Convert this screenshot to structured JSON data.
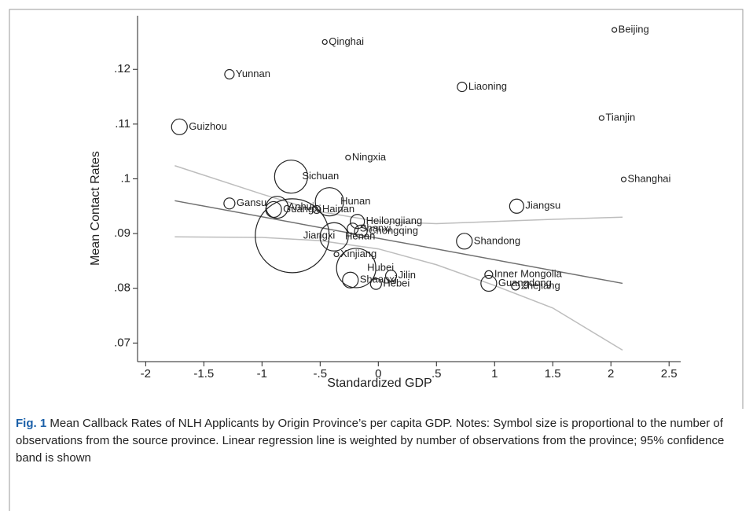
{
  "chart_data": {
    "type": "scatter",
    "xlabel": "Standardized GDP",
    "ylabel": "Mean Contact Rates",
    "xlim": [
      -2.07,
      2.6
    ],
    "ylim": [
      0.0666,
      0.1298
    ],
    "xticks": [
      -2,
      -1.5,
      -1,
      {
        "value": -0.5,
        "label": "-.5"
      },
      0,
      {
        "value": 0.5,
        "label": ".5"
      },
      1,
      1.5,
      2,
      2.5
    ],
    "yticks": [
      {
        "value": 0.07,
        "label": ".07"
      },
      {
        "value": 0.08,
        "label": ".08"
      },
      {
        "value": 0.09,
        "label": ".09"
      },
      {
        "value": 0.1,
        "label": ".1"
      },
      {
        "value": 0.11,
        "label": ".11"
      },
      {
        "value": 0.12,
        "label": ".12"
      }
    ],
    "points": {
      "labels": [
        "Beijing",
        "Qinghai",
        "Yunnan",
        "Liaoning",
        "Tianjin",
        "Guizhou",
        "Ningxia",
        "Sichuan",
        "Shanghai",
        "Gansu",
        "Hunan",
        "Jiangsu",
        "Anhui",
        "Guangxi",
        "Hainan",
        "Heilongjiang",
        "Shanxi",
        "Chongqing",
        "Jiangxi",
        "Henan",
        "Shandong",
        "Xinjiang",
        "Hubei",
        "Jilin",
        "Shaanxi",
        "Hebei",
        "Inner Mongolia",
        "Guangdong",
        "Zhejiang"
      ],
      "x": [
        2.03,
        -0.46,
        -1.28,
        0.72,
        1.92,
        -1.71,
        -0.26,
        -0.75,
        2.11,
        -1.28,
        -0.42,
        1.19,
        -0.87,
        -0.9,
        -0.53,
        -0.18,
        -0.22,
        -0.15,
        -0.74,
        -0.38,
        0.74,
        -0.36,
        -0.19,
        0.11,
        -0.24,
        -0.02,
        0.95,
        0.95,
        1.18
      ],
      "y": [
        0.1272,
        0.125,
        0.1191,
        0.1168,
        0.1111,
        0.1095,
        0.1039,
        0.1004,
        0.0999,
        0.0955,
        0.0958,
        0.095,
        0.0948,
        0.0944,
        0.0944,
        0.0922,
        0.0909,
        0.0904,
        0.0896,
        0.0894,
        0.0886,
        0.0862,
        0.0837,
        0.0823,
        0.0815,
        0.0808,
        0.0825,
        0.0809,
        0.0804
      ],
      "sizes": [
        9,
        9,
        36,
        36,
        9,
        100,
        9,
        441,
        9,
        49,
        324,
        81,
        196,
        100,
        25,
        81,
        49,
        64,
        2209,
        324,
        100,
        9,
        625,
        49,
        100,
        49,
        25,
        100,
        25
      ],
      "color": "#222"
    },
    "lines": [
      {
        "x": [
          -1.75,
          2.1
        ],
        "y": [
          0.096,
          0.0809
        ],
        "color": "#707070"
      },
      {
        "x": [
          -1.75,
          -1,
          -0.5,
          0,
          0.5,
          1,
          1.5,
          2.1
        ],
        "y": [
          0.1024,
          0.0972,
          0.094,
          0.0922,
          0.0918,
          0.0922,
          0.0926,
          0.093
        ],
        "color": "#bdbdbd"
      },
      {
        "x": [
          -1.75,
          -1,
          -0.5,
          0,
          0.5,
          1,
          1.5,
          2.1
        ],
        "y": [
          0.0894,
          0.0893,
          0.0887,
          0.0872,
          0.0843,
          0.0805,
          0.0764,
          0.0687
        ],
        "color": "#bdbdbd"
      }
    ]
  },
  "caption": {
    "label": "Fig. 1",
    "text": "Mean Callback Rates of NLH Applicants by Origin Province’s per capita GDP. Notes: Symbol size is proportional to the number of observations from the source province. Linear regression line is weighted by number of observations from the province; 95% confidence band is shown"
  }
}
